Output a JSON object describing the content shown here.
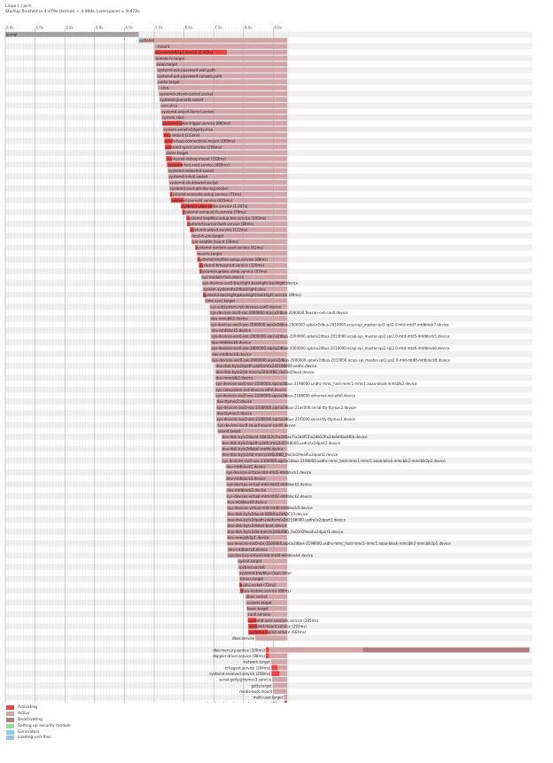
{
  "header": {
    "line1": "Linux ( ) arm",
    "line2": "Startup finished in 4.479s (kernel) + 4.990s (userspace) = 9.470s"
  },
  "chart_data": {
    "type": "gantt",
    "x_unit": "s",
    "xlim": [
      0,
      17.7
    ],
    "ticks": [
      "0.0s",
      "1.0s",
      "2.0s",
      "3.0s",
      "4.0s",
      "5.0s",
      "6.0s",
      "7.0s",
      "8.0s",
      "9.0s"
    ],
    "colors": {
      "activating": "#ee4444",
      "active": "#d2a5a7",
      "deactivating": "#ad7c80",
      "security": "#8fe08f",
      "generators": "#89cfeb",
      "loading": "#97c3ee",
      "kernel": "#a3a3a3",
      "kernel_end": "#aaaaaa"
    },
    "rows": [
      {
        "label": "kernel",
        "start": 0.0,
        "end": 4.479,
        "act": 0.0,
        "kind": "kernel"
      },
      {
        "label": "systemd",
        "start": 4.48,
        "end": 9.47,
        "act": 0.0,
        "kind": "systemd"
      },
      {
        "label": "-.mount",
        "start": 5.02,
        "end": 9.47,
        "act": 0.0
      },
      {
        "label": "dev-mmcblk2p2.device (2.422s)",
        "start": 5.02,
        "end": 9.47,
        "act": 2.422
      },
      {
        "label": "remote-fs.target",
        "start": 5.02,
        "end": 9.47,
        "act": 0.0
      },
      {
        "label": "swap.target",
        "start": 5.05,
        "end": 9.47,
        "act": 0.0
      },
      {
        "label": "systemd-ask-password-wall.path",
        "start": 5.08,
        "end": 9.47,
        "act": 0.0
      },
      {
        "label": "systemd-ask-password-console.path",
        "start": 5.08,
        "end": 9.47,
        "act": 0.0
      },
      {
        "label": "paths.target",
        "start": 5.1,
        "end": 9.47,
        "act": 0.0
      },
      {
        "label": "-.slice",
        "start": 5.12,
        "end": 9.47,
        "act": 0.0
      },
      {
        "label": "systemd-udevd-control.socket",
        "start": 5.15,
        "end": 9.47,
        "act": 0.0
      },
      {
        "label": "systemd-journald.socket",
        "start": 5.17,
        "end": 9.47,
        "act": 0.0
      },
      {
        "label": "user.slice",
        "start": 5.2,
        "end": 9.47,
        "act": 0.0
      },
      {
        "label": "systemd-udevd-kernel.socket",
        "start": 5.22,
        "end": 9.47,
        "act": 0.0
      },
      {
        "label": "system.slice",
        "start": 5.24,
        "end": 9.47,
        "act": 0.0
      },
      {
        "label": "systemd-udev-trigger.service (660ms)",
        "start": 5.27,
        "end": 9.47,
        "act": 0.66
      },
      {
        "label": "system-serial\\x2dgetty.slice",
        "start": 5.29,
        "end": 9.47,
        "act": 0.0
      },
      {
        "label": "tmp.mount (213ms)",
        "start": 5.31,
        "end": 9.47,
        "act": 0.213
      },
      {
        "label": "sys-fs-fuse-connections.mount (269ms)",
        "start": 5.34,
        "end": 9.47,
        "act": 0.269
      },
      {
        "label": "systemd-sysctl.service (206ms)",
        "start": 5.36,
        "end": 9.47,
        "act": 0.206
      },
      {
        "label": "slices.target",
        "start": 5.38,
        "end": 9.47,
        "act": 0.0
      },
      {
        "label": "sys-kernel-debug.mount (183ms)",
        "start": 5.4,
        "end": 9.47,
        "act": 0.183
      },
      {
        "label": "systemd-fsck-root.service (490ms)",
        "start": 5.43,
        "end": 9.47,
        "act": 0.49
      },
      {
        "label": "systemd-networkd.socket",
        "start": 5.45,
        "end": 9.47,
        "act": 0.0
      },
      {
        "label": "systemd-initctl.socket",
        "start": 5.47,
        "end": 9.47,
        "act": 0.0
      },
      {
        "label": "systemd-shutdownd.socket",
        "start": 5.49,
        "end": 9.47,
        "act": 0.0
      },
      {
        "label": "systemd-journald-dev-log.socket",
        "start": 5.51,
        "end": 9.47,
        "act": 0.0
      },
      {
        "label": "systemd-vconsole-setup.service (71ms)",
        "start": 5.53,
        "end": 9.47,
        "act": 0.071
      },
      {
        "label": "systemd-journald.service (425ms)",
        "start": 5.56,
        "end": 9.47,
        "act": 0.425
      },
      {
        "label": "systemd-udev-settle.service (1.047s)",
        "start": 5.9,
        "end": 9.47,
        "act": 1.047
      },
      {
        "label": "systemd-remount-fs.service (78ms)",
        "start": 5.94,
        "end": 9.47,
        "act": 0.078
      },
      {
        "label": "systemd-tmpfiles-setup-dev.service (100ms)",
        "start": 6.08,
        "end": 9.47,
        "act": 0.1
      },
      {
        "label": "systemd-journal-flush.service (84ms)",
        "start": 6.1,
        "end": 9.47,
        "act": 0.084
      },
      {
        "label": "systemd-udevd.service (122ms)",
        "start": 6.2,
        "end": 9.47,
        "act": 0.122
      },
      {
        "label": "local-fs-pre.target",
        "start": 6.24,
        "end": 9.47,
        "act": 0.0
      },
      {
        "label": "var-volatile.mount (29ms)",
        "start": 6.26,
        "end": 9.47,
        "act": 0.029
      },
      {
        "label": "systemd-random-seed.service (62ms)",
        "start": 6.38,
        "end": 9.47,
        "act": 0.062
      },
      {
        "label": "local-fs.target",
        "start": 6.42,
        "end": 9.47,
        "act": 0.0
      },
      {
        "label": "systemd-tmpfiles-setup.service (88ms)",
        "start": 6.45,
        "end": 9.47,
        "act": 0.088
      },
      {
        "label": "systemd-timesyncd.service (120ms)",
        "start": 6.5,
        "end": 9.47,
        "act": 0.12
      },
      {
        "label": "systemd-update-utmp.service (57ms)",
        "start": 6.52,
        "end": 9.47,
        "act": 0.057
      },
      {
        "label": "sys-module-fuse.device",
        "start": 6.58,
        "end": 9.47,
        "act": 0.0
      },
      {
        "label": "sys-devices-soc0-backlight-backlight-backlight.device",
        "start": 6.6,
        "end": 9.47,
        "act": 0.0
      },
      {
        "label": "system-systemd\\x2dbacklight.slice",
        "start": 6.62,
        "end": 9.47,
        "act": 0.0
      },
      {
        "label": "systemd-backlight@backlight:backlight.service (89ms)",
        "start": 6.64,
        "end": 9.47,
        "act": 0.089
      },
      {
        "label": "time-sync.target",
        "start": 6.7,
        "end": 9.47,
        "act": 0.0
      },
      {
        "label": "sys-subsystem-net-devices-can0.device",
        "start": 6.86,
        "end": 9.47,
        "act": 0.0
      },
      {
        "label": "sys-devices-soc0-soc-2000000.aips\\x2dbus-2090000.flexcan-net-can0.device",
        "start": 6.86,
        "end": 9.47,
        "act": 0.0
      },
      {
        "label": "dev-mmcblk2.device",
        "start": 6.88,
        "end": 9.47,
        "act": 0.0
      },
      {
        "label": "sys-devices-soc0-soc-2000000.aips\\x2dbus-2000000.spba\\x2dbus-2010000.ecspi-spi_master-spi2-spi2.0-mtd-mtd7-mtdblock7.device",
        "start": 6.88,
        "end": 9.47,
        "act": 0.0
      },
      {
        "label": "dev-mtdblock5.device",
        "start": 6.9,
        "end": 9.47,
        "act": 0.0
      },
      {
        "label": "sys-devices-soc0-soc-2000000.aips\\x2dbus-2000000.spba\\x2dbus-2010000.ecspi-spi_master-spi2-spi2.0-mtd-mtd5-mtdblock5.device",
        "start": 6.9,
        "end": 9.47,
        "act": 0.0
      },
      {
        "label": "dev-mtdblock6.device",
        "start": 6.9,
        "end": 9.47,
        "act": 0.0
      },
      {
        "label": "sys-devices-soc0-soc-2000000.aips\\x2dbus-2000000.spba\\x2dbus-2010000.ecspi-spi_master-spi2-spi2.0-mtd-mtd6-mtdblock6.device",
        "start": 6.9,
        "end": 9.47,
        "act": 0.0
      },
      {
        "label": "dev-mtdblock8.device",
        "start": 6.92,
        "end": 9.47,
        "act": 0.0
      },
      {
        "label": "sys-devices-soc0-soc-2000000.aips\\x2dbus-2000000.spba\\x2dbus-2010000.ecspi-spi_master-spi2-spi2.0-mtd-mtd8-mtdblock8.device",
        "start": 6.92,
        "end": 9.47,
        "act": 0.0
      },
      {
        "label": "dev-disk-by\\x2dpath-platform\\x2d2198000.usdhc.device",
        "start": 7.05,
        "end": 9.47,
        "act": 0.0
      },
      {
        "label": "dev-disk-by\\x2did-mmc\\x2dSU08G_0x03d29ea4.device",
        "start": 7.05,
        "end": 9.47,
        "act": 0.0
      },
      {
        "label": "dev-mmcblk2.device",
        "start": 7.05,
        "end": 9.47,
        "act": 0.0
      },
      {
        "label": "sys-devices-soc0-soc-2100000.aips\\x2dbus-2198000.usdhc-mmc_host-mmc1-mmc1:aaaa-block-mmcblk2.device",
        "start": 7.05,
        "end": 9.47,
        "act": 0.0
      },
      {
        "label": "sys-subsystem-net-devices-eth0.device",
        "start": 7.05,
        "end": 9.47,
        "act": 0.0
      },
      {
        "label": "sys-devices-soc0-soc-2100000.aips\\x2dbus-2188000.ethernet-net-eth0.device",
        "start": 7.05,
        "end": 9.47,
        "act": 0.0
      },
      {
        "label": "dev-ttymxc2.device",
        "start": 7.08,
        "end": 9.47,
        "act": 0.0
      },
      {
        "label": "sys-devices-soc0-soc-2100000.aips\\x2dbus-21ec000.serial-tty-ttymxc2.device",
        "start": 7.08,
        "end": 9.47,
        "act": 0.0
      },
      {
        "label": "dev-ttymxc3.device",
        "start": 7.08,
        "end": 9.47,
        "act": 0.0
      },
      {
        "label": "sys-devices-soc0-soc-2100000.aips\\x2dbus-21f0000.serial-tty-ttymxc3.device",
        "start": 7.08,
        "end": 9.47,
        "act": 0.0
      },
      {
        "label": "sys-devices-soc0-sound-sound-card0.device",
        "start": 7.1,
        "end": 9.47,
        "act": 0.0
      },
      {
        "label": "sound.target",
        "start": 7.12,
        "end": 9.47,
        "act": 0.0
      },
      {
        "label": "dev-disk-by\\x2duuid-18d322c2\\x2d5ae7\\x2d4f53\\x2d810f\\x2dafaf4bcbf0b.device",
        "start": 7.26,
        "end": 9.47,
        "act": 0.0
      },
      {
        "label": "dev-disk-by\\x2dpath-platform\\x2d2198000.usdhc\\x2dpart2.device",
        "start": 7.26,
        "end": 9.47,
        "act": 0.0
      },
      {
        "label": "dev-disk-by\\x2dlabel-rootfs.device",
        "start": 7.26,
        "end": 9.47,
        "act": 0.0
      },
      {
        "label": "dev-disk-by\\x2did-mmc\\x2dSU08G_0x03d29ea4\\x2dpart2.device",
        "start": 7.26,
        "end": 9.47,
        "act": 0.0
      },
      {
        "label": "sys-devices-soc0-soc-2100000.aips\\x2dbus-2198000.usdhc-mmc_host-mmc1-mmc1:aaaa-block-mmcblk2-mmcblk2p2.device",
        "start": 7.26,
        "end": 9.47,
        "act": 0.0
      },
      {
        "label": "dev-mtdblock1.device",
        "start": 7.4,
        "end": 9.47,
        "act": 0.0
      },
      {
        "label": "sys-devices-virtual-mtd-mtd1-mtdblock1.device",
        "start": 7.4,
        "end": 9.47,
        "act": 0.0
      },
      {
        "label": "dev-mtdblock3.device",
        "start": 7.4,
        "end": 9.47,
        "act": 0.0
      },
      {
        "label": "sys-devices-virtual-mtd-mtd3-mtdblock3.device",
        "start": 7.42,
        "end": 9.47,
        "act": 0.0
      },
      {
        "label": "dev-mtdblock2.device",
        "start": 7.42,
        "end": 9.47,
        "act": 0.0
      },
      {
        "label": "sys-devices-virtual-mtd-mtd2-mtdblock2.device",
        "start": 7.42,
        "end": 9.47,
        "act": 0.0
      },
      {
        "label": "dev-mtdblock0.device",
        "start": 7.44,
        "end": 9.47,
        "act": 0.0
      },
      {
        "label": "sys-devices-virtual-mtd-mtd0-mtdblock0.device",
        "start": 7.44,
        "end": 9.47,
        "act": 0.0
      },
      {
        "label": "dev-disk-by\\x2duuid-DDBA\\x2dADC33.device",
        "start": 7.44,
        "end": 9.47,
        "act": 0.0
      },
      {
        "label": "dev-disk-by\\x2dpath-platform\\x2d2198000.usdhc\\x2dpart1.device",
        "start": 7.44,
        "end": 9.47,
        "act": 0.0
      },
      {
        "label": "dev-disk-by\\x2dlabel-boot.device",
        "start": 7.44,
        "end": 9.47,
        "act": 0.0
      },
      {
        "label": "dev-disk-by\\x2did-mmc\\x2dSU08G_0x03d29ea4\\x2dpart1.device",
        "start": 7.44,
        "end": 9.47,
        "act": 0.0
      },
      {
        "label": "dev-mmcblk2p1.device",
        "start": 7.44,
        "end": 9.47,
        "act": 0.0
      },
      {
        "label": "sys-devices-soc0-soc-2100000.aips\\x2dbus-2198000.usdhc-mmc_host-mmc1-mmc1:aaaa-block-mmcblk2-mmcblk2p1.device",
        "start": 7.44,
        "end": 9.47,
        "act": 0.0
      },
      {
        "label": "dev-mtdblock4.device",
        "start": 7.46,
        "end": 9.47,
        "act": 0.0
      },
      {
        "label": "sys-devices-virtual-mtd-mtd4-mtdblock4.device",
        "start": 7.46,
        "end": 9.47,
        "act": 0.0
      },
      {
        "label": "sysinit.target",
        "start": 7.8,
        "end": 9.47,
        "act": 0.0
      },
      {
        "label": "rpcbind.socket",
        "start": 7.82,
        "end": 9.47,
        "act": 0.0
      },
      {
        "label": "systemd-tmpfiles-clean.timer",
        "start": 7.84,
        "end": 9.47,
        "act": 0.0
      },
      {
        "label": "timers.target",
        "start": 7.86,
        "end": 9.47,
        "act": 0.0
      },
      {
        "label": "avahi.socket (72ms)",
        "start": 7.86,
        "end": 9.47,
        "act": 0.072
      },
      {
        "label": "dbus-restore.service (88ms)",
        "start": 7.88,
        "end": 9.47,
        "act": 0.088
      },
      {
        "label": "dbus.socket",
        "start": 8.06,
        "end": 9.47,
        "act": 0.0
      },
      {
        "label": "sockets.target",
        "start": 8.08,
        "end": 9.47,
        "act": 0.0
      },
      {
        "label": "basic.target",
        "start": 8.1,
        "end": 9.47,
        "act": 0.0
      },
      {
        "label": "can0.service",
        "start": 8.12,
        "end": 9.47,
        "act": 0.0
      },
      {
        "label": "systemd-user-sessions.service (285ms)",
        "start": 8.14,
        "end": 9.47,
        "act": 0.285
      },
      {
        "label": "systemd-mount.service (292ms)",
        "start": 8.16,
        "end": 9.47,
        "act": 0.292
      },
      {
        "label": "systemd-logind.service (664ms)",
        "start": 8.16,
        "end": 9.47,
        "act": 0.664
      },
      {
        "label": "dbus.service",
        "start": 8.4,
        "end": 9.47,
        "act": 0.0
      },
      {
        "label": "dbus.service",
        "start": 8.4,
        "end": 9.47,
        "act": 0.0,
        "kind": "blank"
      },
      {
        "label": "dbe-mercury.service (100ms)",
        "start": 8.75,
        "end": 12.0,
        "act": 0.1,
        "deact_from": 12.0,
        "deact_to": 17.6
      },
      {
        "label": "doppler-driver.service (98ms)",
        "start": 8.75,
        "end": 9.47,
        "act": 0.098
      },
      {
        "label": "network.target",
        "start": 8.92,
        "end": 9.47,
        "act": 0.0
      },
      {
        "label": "tcf-agent.service (204ms)",
        "start": 8.94,
        "end": 9.47,
        "act": 0.204
      },
      {
        "label": "systemd-resolved.service (258ms)",
        "start": 8.94,
        "end": 9.47,
        "act": 0.258
      },
      {
        "label": "serial-getty@ttymxc3.service",
        "start": 8.96,
        "end": 9.47,
        "act": 0.0
      },
      {
        "label": "getty.target",
        "start": 8.98,
        "end": 9.47,
        "act": 0.0
      },
      {
        "label": "media-boot.mount",
        "start": 9.0,
        "end": 9.47,
        "act": 0.0
      },
      {
        "label": "multi-user.target",
        "start": 9.35,
        "end": 9.47,
        "act": 0.0
      },
      {
        "label": "systemd-update-utmp-runlevel.service (74ms)",
        "start": 9.38,
        "end": 9.47,
        "act": 0.074
      }
    ]
  },
  "legend": [
    {
      "label": "Activating",
      "color": "#ee4444"
    },
    {
      "label": "Active",
      "color": "#d2a5a7"
    },
    {
      "label": "Deactivating",
      "color": "#ad7c80"
    },
    {
      "label": "Setting up security module",
      "color": "#8fe08f"
    },
    {
      "label": "Generators",
      "color": "#89cfeb"
    },
    {
      "label": "Loading unit files",
      "color": "#97c3ee"
    }
  ]
}
